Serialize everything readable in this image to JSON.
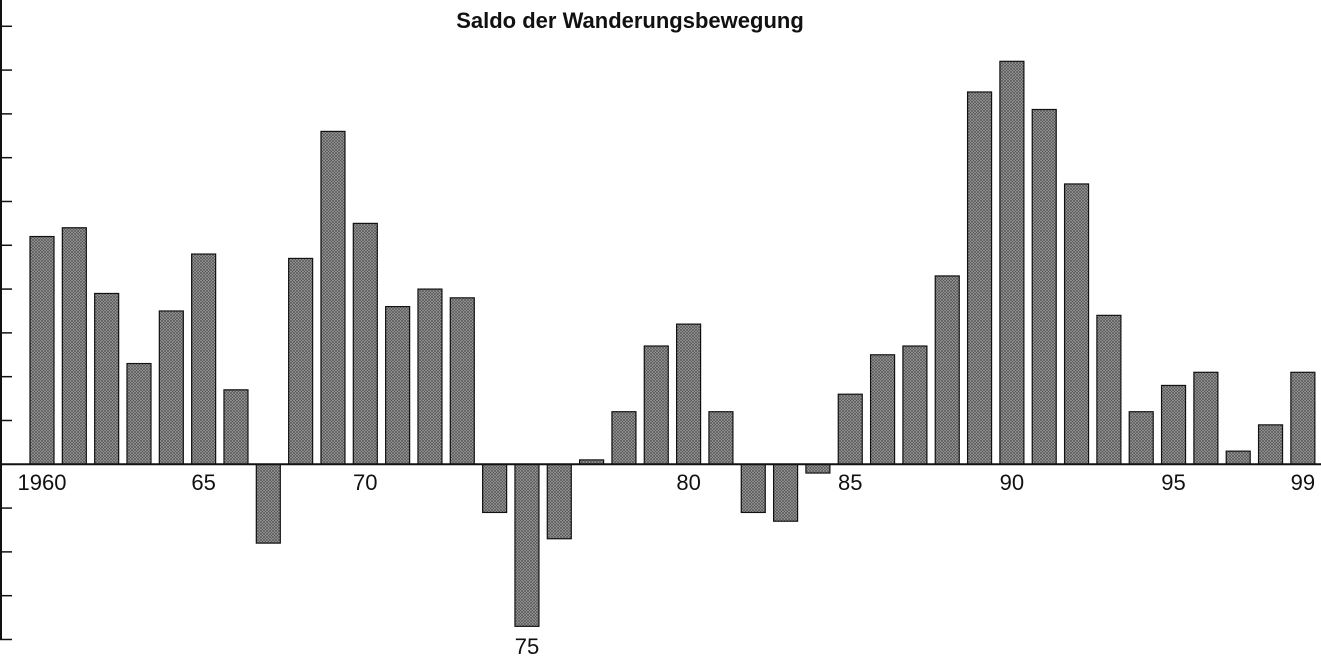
{
  "chart_data": {
    "type": "bar",
    "title": "Saldo der Wanderungsbewegung",
    "categories": [
      "1960",
      null,
      null,
      null,
      null,
      "65",
      null,
      null,
      null,
      null,
      "70",
      null,
      null,
      null,
      null,
      "75",
      null,
      null,
      null,
      null,
      "80",
      null,
      null,
      null,
      null,
      "85",
      null,
      null,
      null,
      null,
      "90",
      null,
      null,
      null,
      null,
      "95",
      null,
      null,
      null,
      "99"
    ],
    "values": [
      5.2,
      5.4,
      3.9,
      2.3,
      3.5,
      4.8,
      1.7,
      -1.8,
      4.7,
      7.6,
      5.5,
      3.6,
      4.0,
      3.8,
      -1.1,
      -3.7,
      -1.7,
      0.1,
      1.2,
      2.7,
      3.2,
      1.2,
      -1.1,
      -1.3,
      -0.2,
      1.6,
      2.5,
      2.7,
      4.3,
      8.5,
      9.2,
      8.1,
      6.4,
      3.4,
      1.2,
      1.8,
      2.1,
      0.3,
      0.9,
      2.1
    ],
    "color": "#8c8c8c",
    "ylim": [
      -4.4,
      10.6
    ],
    "yticks": [
      -4,
      -3,
      -2,
      -1,
      0,
      1,
      2,
      3,
      4,
      5,
      6,
      7,
      8,
      9,
      10
    ]
  }
}
